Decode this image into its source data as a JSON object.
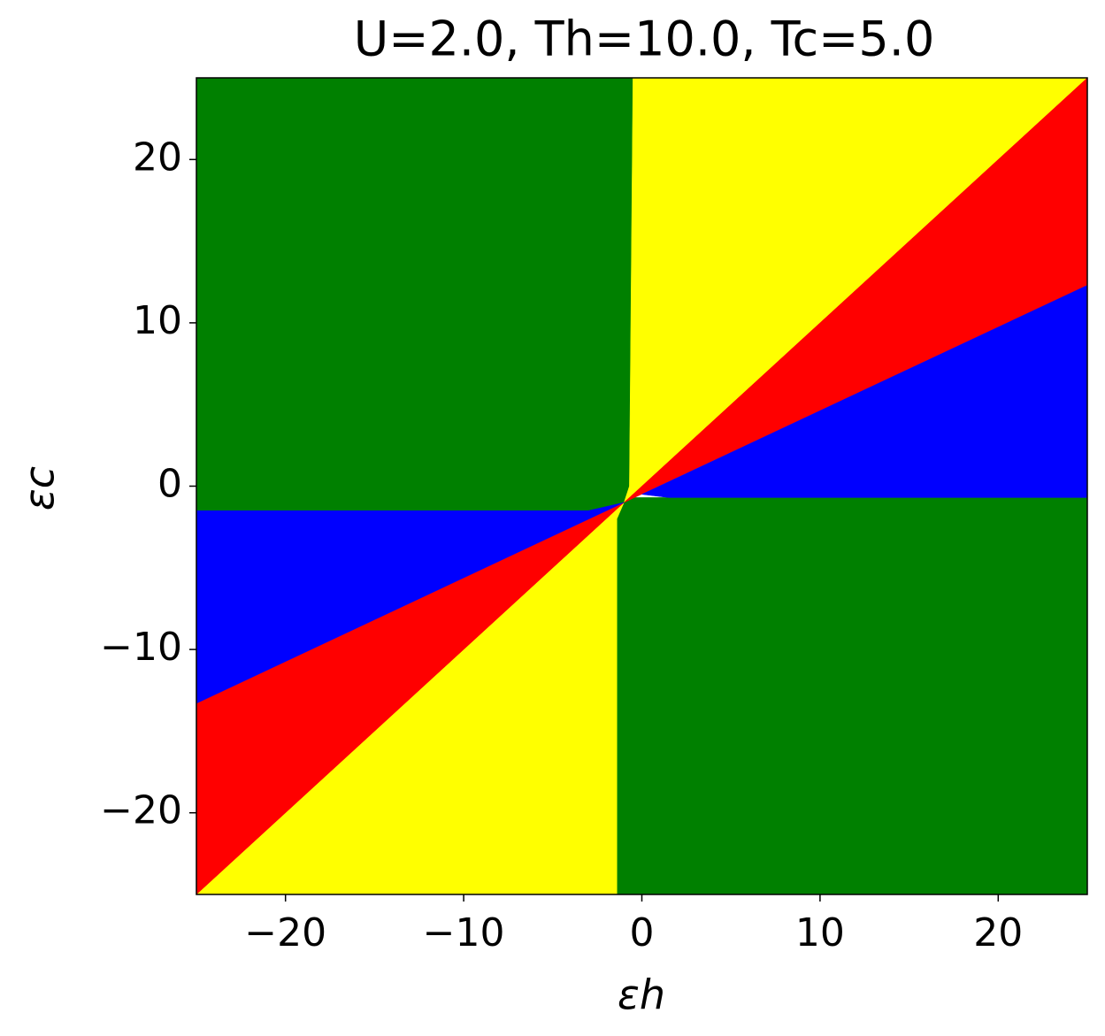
{
  "chart_data": {
    "type": "region-map",
    "title": "U=2.0, Th=10.0, Tc=5.0",
    "x_label": "εh",
    "y_label": "εc",
    "xlim": [
      -25,
      25
    ],
    "ylim": [
      -25,
      25
    ],
    "xticks": [
      {
        "value": -20,
        "label": "−20"
      },
      {
        "value": -10,
        "label": "−10"
      },
      0,
      10,
      20
    ],
    "yticks": [
      {
        "value": -20,
        "label": "−20"
      },
      {
        "value": -10,
        "label": "−10"
      },
      0,
      10,
      20
    ],
    "regions": [
      {
        "color": "#008000",
        "points": [
          [
            -25,
            25
          ],
          [
            -0.5,
            25
          ],
          [
            -0.5,
            -1.5
          ],
          [
            -25,
            -1.5
          ]
        ]
      },
      {
        "color": "#008000",
        "points": [
          [
            -1.4,
            -0.7
          ],
          [
            25,
            -0.7
          ],
          [
            25,
            -25
          ],
          [
            -1.4,
            -25
          ]
        ]
      },
      {
        "color": "#ffff00",
        "points": [
          [
            -0.5,
            25
          ],
          [
            25,
            25
          ],
          [
            -1,
            -1
          ],
          [
            -0.7,
            0
          ]
        ]
      },
      {
        "color": "#ffff00",
        "points": [
          [
            -25,
            -25
          ],
          [
            -1.4,
            -25
          ],
          [
            -1.4,
            -2
          ],
          [
            -1,
            -1
          ]
        ]
      },
      {
        "color": "#ff0000",
        "points": [
          [
            25,
            25
          ],
          [
            25,
            12.3
          ],
          [
            -1,
            -1
          ]
        ]
      },
      {
        "color": "#ff0000",
        "points": [
          [
            -25,
            -25
          ],
          [
            -1,
            -1
          ],
          [
            -25,
            -13.3
          ]
        ]
      },
      {
        "color": "#0000ff",
        "points": [
          [
            0,
            -0.5
          ],
          [
            25,
            12.3
          ],
          [
            25,
            -0.7
          ],
          [
            1.5,
            -0.7
          ]
        ]
      },
      {
        "color": "#0000ff",
        "points": [
          [
            -25,
            -1.5
          ],
          [
            -3,
            -1.5
          ],
          [
            -1,
            -1
          ],
          [
            -25,
            -13.3
          ]
        ]
      }
    ]
  }
}
